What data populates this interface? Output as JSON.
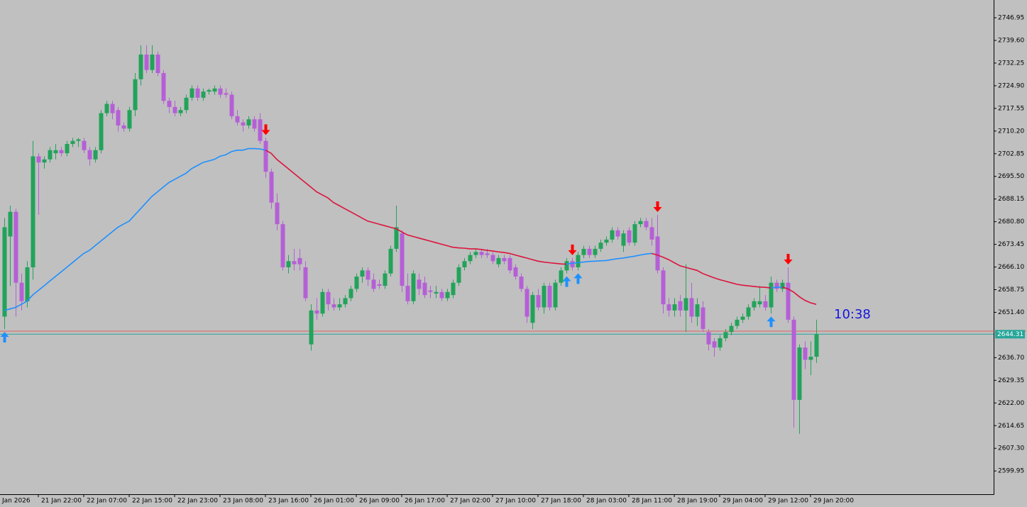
{
  "chart_data": {
    "type": "candlestick",
    "candles": [
      [
        2650,
        2682,
        2646,
        2679
      ],
      [
        2676,
        2686,
        2660,
        2684
      ],
      [
        2684,
        2685,
        2650,
        2661
      ],
      [
        2661,
        2664,
        2652,
        2655
      ],
      [
        2655,
        2668,
        2653,
        2666
      ],
      [
        2666,
        2707,
        2662,
        2702
      ],
      [
        2702,
        2703,
        2683,
        2700
      ],
      [
        2700,
        2702,
        2698,
        2701
      ],
      [
        2701,
        2705,
        2700,
        2704
      ],
      [
        2703,
        2706,
        2701,
        2704
      ],
      [
        2704,
        2705,
        2702,
        2703
      ],
      [
        2703,
        2707,
        2702,
        2706
      ],
      [
        2706,
        2708,
        2705,
        2707
      ],
      [
        2707,
        2708,
        2705,
        2707.5
      ],
      [
        2707,
        2708,
        2703,
        2704
      ],
      [
        2704,
        2705,
        2699,
        2701
      ],
      [
        2701,
        2705,
        2700,
        2704
      ],
      [
        2704,
        2717,
        2703,
        2716
      ],
      [
        2716,
        2720,
        2715,
        2719
      ],
      [
        2719,
        2720,
        2714,
        2716
      ],
      [
        2717,
        2718,
        2710,
        2712
      ],
      [
        2712,
        2713,
        2710,
        2711
      ],
      [
        2711,
        2718,
        2710,
        2717
      ],
      [
        2717,
        2729,
        2715,
        2727
      ],
      [
        2727,
        2738,
        2725,
        2735
      ],
      [
        2735,
        2738,
        2729,
        2730
      ],
      [
        2730,
        2738,
        2729,
        2735
      ],
      [
        2735,
        2736,
        2728,
        2729
      ],
      [
        2729,
        2730,
        2719,
        2720
      ],
      [
        2720,
        2721,
        2716,
        2718
      ],
      [
        2718,
        2720,
        2715,
        2716
      ],
      [
        2716,
        2718,
        2715,
        2717
      ],
      [
        2717,
        2722,
        2716,
        2721
      ],
      [
        2721,
        2725,
        2720,
        2724
      ],
      [
        2724,
        2725,
        2720,
        2721
      ],
      [
        2721,
        2724,
        2720,
        2723
      ],
      [
        2723,
        2724,
        2722,
        2723.5
      ],
      [
        2723,
        2725,
        2722,
        2724
      ],
      [
        2724,
        2725,
        2721,
        2722
      ],
      [
        2722.5,
        2724,
        2721,
        2722
      ],
      [
        2722,
        2723,
        2714,
        2715
      ],
      [
        2715,
        2717,
        2712,
        2713
      ],
      [
        2713,
        2714,
        2710,
        2712
      ],
      [
        2712,
        2715,
        2711,
        2714
      ],
      [
        2714,
        2715,
        2710,
        2711
      ],
      [
        2714,
        2716,
        2706,
        2707
      ],
      [
        2707,
        2708,
        2695,
        2697
      ],
      [
        2697,
        2698,
        2685,
        2687
      ],
      [
        2687,
        2690,
        2678,
        2680
      ],
      [
        2680,
        2681,
        2665,
        2666
      ],
      [
        2666,
        2670,
        2664,
        2668
      ],
      [
        2668,
        2672,
        2665,
        2667
      ],
      [
        2669,
        2672,
        2665,
        2667
      ],
      [
        2666,
        2668,
        2655,
        2656
      ],
      [
        2641,
        2654,
        2639,
        2652
      ],
      [
        2652,
        2656,
        2649,
        2651
      ],
      [
        2651,
        2659,
        2650,
        2658
      ],
      [
        2658,
        2659,
        2652,
        2654
      ],
      [
        2654,
        2656,
        2652,
        2653
      ],
      [
        2653,
        2656,
        2652,
        2654
      ],
      [
        2654,
        2657,
        2653,
        2656
      ],
      [
        2656,
        2660,
        2655,
        2659
      ],
      [
        2659,
        2664,
        2658,
        2663
      ],
      [
        2663,
        2666,
        2661,
        2665
      ],
      [
        2665,
        2666,
        2660,
        2662
      ],
      [
        2662,
        2664,
        2658,
        2659
      ],
      [
        2660.5,
        2662,
        2659,
        2660
      ],
      [
        2660,
        2665,
        2659,
        2664
      ],
      [
        2664,
        2673,
        2663,
        2672
      ],
      [
        2672,
        2686,
        2671,
        2679
      ],
      [
        2677,
        2678,
        2658,
        2660
      ],
      [
        2660,
        2664,
        2654,
        2655
      ],
      [
        2655,
        2665,
        2654,
        2664
      ],
      [
        2662,
        2664,
        2657,
        2659
      ],
      [
        2661,
        2663,
        2656,
        2657
      ],
      [
        2658.5,
        2660,
        2656,
        2658
      ],
      [
        2657.5,
        2660,
        2656,
        2658
      ],
      [
        2658,
        2659,
        2655,
        2656
      ],
      [
        2656,
        2659,
        2655,
        2658
      ],
      [
        2657,
        2662,
        2656,
        2661
      ],
      [
        2661,
        2667,
        2660,
        2666
      ],
      [
        2666,
        2669,
        2665,
        2668
      ],
      [
        2668,
        2671,
        2667,
        2670
      ],
      [
        2670,
        2672,
        2669,
        2671
      ],
      [
        2671,
        2672,
        2669,
        2670
      ],
      [
        2670.5,
        2672,
        2669,
        2670
      ],
      [
        2670,
        2671,
        2667,
        2668
      ],
      [
        2667,
        2670,
        2666,
        2669
      ],
      [
        2669,
        2670,
        2667,
        2668
      ],
      [
        2669,
        2670,
        2664,
        2665
      ],
      [
        2666,
        2667,
        2662,
        2663
      ],
      [
        2663,
        2664,
        2658,
        2659
      ],
      [
        2659,
        2660,
        2648,
        2650
      ],
      [
        2648,
        2658,
        2646,
        2657
      ],
      [
        2657,
        2659,
        2652,
        2653
      ],
      [
        2653,
        2661,
        2651,
        2660
      ],
      [
        2660,
        2661,
        2652,
        2653
      ],
      [
        2653,
        2662,
        2652,
        2661
      ],
      [
        2661,
        2666,
        2660,
        2665
      ],
      [
        2665,
        2669,
        2664,
        2668
      ],
      [
        2668,
        2669,
        2665,
        2666
      ],
      [
        2666,
        2671,
        2665,
        2670
      ],
      [
        2670,
        2673,
        2669,
        2672
      ],
      [
        2672,
        2673,
        2669,
        2670
      ],
      [
        2670,
        2673,
        2669,
        2672
      ],
      [
        2672,
        2675,
        2671,
        2674
      ],
      [
        2674,
        2676,
        2673,
        2675
      ],
      [
        2675,
        2679,
        2674,
        2678
      ],
      [
        2678,
        2679,
        2675,
        2676
      ],
      [
        2673,
        2678,
        2671,
        2677
      ],
      [
        2678,
        2679,
        2673,
        2674
      ],
      [
        2674,
        2681,
        2673,
        2680
      ],
      [
        2680,
        2682,
        2679,
        2681
      ],
      [
        2681,
        2682,
        2678,
        2679
      ],
      [
        2679,
        2682,
        2673,
        2675
      ],
      [
        2676,
        2683,
        2664,
        2665
      ],
      [
        2665,
        2666,
        2651,
        2654
      ],
      [
        2654,
        2656,
        2650,
        2652
      ],
      [
        2652,
        2656,
        2650,
        2654
      ],
      [
        2655,
        2657,
        2650,
        2652
      ],
      [
        2652,
        2667,
        2645,
        2656
      ],
      [
        2656,
        2661,
        2648,
        2650
      ],
      [
        2650,
        2656,
        2647,
        2654
      ],
      [
        2653,
        2655,
        2645,
        2646
      ],
      [
        2645,
        2646,
        2639,
        2641
      ],
      [
        2642,
        2643,
        2637,
        2640
      ],
      [
        2640,
        2644,
        2639,
        2643
      ],
      [
        2643,
        2646,
        2642,
        2645
      ],
      [
        2645,
        2648,
        2644,
        2647
      ],
      [
        2647,
        2650,
        2646,
        2649
      ],
      [
        2649,
        2651,
        2648,
        2650
      ],
      [
        2650,
        2654,
        2649,
        2653
      ],
      [
        2653,
        2656,
        2652,
        2655
      ],
      [
        2654,
        2660,
        2653,
        2655
      ],
      [
        2655,
        2657,
        2652,
        2653
      ],
      [
        2653,
        2663,
        2651,
        2661
      ],
      [
        2661,
        2662,
        2658,
        2659
      ],
      [
        2659,
        2662,
        2658,
        2661
      ],
      [
        2661,
        2666,
        2648,
        2649
      ],
      [
        2649,
        2650,
        2614,
        2623
      ],
      [
        2623,
        2641,
        2612,
        2640
      ],
      [
        2640,
        2642,
        2633,
        2636
      ],
      [
        2636,
        2642,
        2631,
        2637
      ],
      [
        2637,
        2649,
        2635,
        2644.31
      ]
    ],
    "up_color": "#22a35a",
    "down_color": "#b55fd6",
    "series": [
      {
        "color": "#1e90ff",
        "values": [
          2652,
          2652.5,
          2653,
          2654,
          2655,
          2657,
          2658.5,
          2660,
          2661.5,
          2663,
          2664.5,
          2666,
          2667.5,
          2669,
          2670.5,
          2671.5,
          2673,
          2674.5,
          2676,
          2677.5,
          2679,
          2680,
          2681,
          2683,
          2685,
          2687,
          2689,
          2690.5,
          2692,
          2693.5,
          2694.5,
          2695.5,
          2696.5,
          2698,
          2699,
          2700,
          2700.5,
          2701,
          2702,
          2702.5,
          2703.5,
          2704,
          2704,
          2704.5,
          2704.5,
          2704.4,
          2704,
          null,
          null,
          null,
          null,
          null,
          null,
          null,
          null,
          null,
          null,
          null,
          null,
          null,
          null,
          null,
          null,
          null,
          null,
          null,
          null,
          null,
          null,
          null,
          null,
          null,
          null,
          null,
          null,
          null,
          null,
          null,
          null,
          null,
          null,
          null,
          null,
          null,
          null,
          null,
          null,
          null,
          null,
          null,
          null,
          null,
          null,
          null,
          null,
          null,
          null,
          null,
          null,
          2667,
          2667.3,
          2667.5,
          2667.7,
          2667.9,
          2668,
          2668.1,
          2668.2,
          2668.5,
          2668.8,
          2669,
          2669.3,
          2669.6,
          2670,
          2670.3,
          2670.5,
          null,
          null,
          null,
          null,
          null,
          null,
          null,
          null,
          null,
          null,
          null,
          null,
          null,
          null,
          null,
          null,
          null,
          null,
          null,
          null,
          2659.3,
          2659.5,
          2659.6,
          null,
          null,
          null,
          null,
          null,
          null
        ]
      },
      {
        "color": "#dc143c",
        "values": [
          null,
          null,
          null,
          null,
          null,
          null,
          null,
          null,
          null,
          null,
          null,
          null,
          null,
          null,
          null,
          null,
          null,
          null,
          null,
          null,
          null,
          null,
          null,
          null,
          null,
          null,
          null,
          null,
          null,
          null,
          null,
          null,
          null,
          null,
          null,
          null,
          null,
          null,
          null,
          null,
          null,
          null,
          null,
          null,
          null,
          null,
          2704,
          2703,
          2701,
          2699.5,
          2698,
          2696.5,
          2695,
          2693.5,
          2692,
          2690.5,
          2689.5,
          2688.5,
          2687,
          2686,
          2685,
          2684,
          2683,
          2682,
          2681,
          2680.5,
          2680,
          2679.5,
          2679,
          2678.5,
          2677.5,
          2676.5,
          2676,
          2675.5,
          2675,
          2674.5,
          2674,
          2673.5,
          2673,
          2672.5,
          2672.3,
          2672.2,
          2672,
          2672,
          2671.8,
          2671.5,
          2671.3,
          2671,
          2670.8,
          2670.5,
          2670,
          2669.5,
          2669,
          2668.5,
          2668,
          2667.7,
          2667.5,
          2667.3,
          2667.1,
          2667,
          null,
          null,
          null,
          null,
          null,
          null,
          null,
          null,
          null,
          null,
          null,
          null,
          null,
          null,
          2670.5,
          2670,
          2669.3,
          2668.5,
          2667.5,
          2666.5,
          2666,
          2665.5,
          2665,
          2664,
          2663.3,
          2662.6,
          2662,
          2661.5,
          2661,
          2660.5,
          2660.2,
          2660,
          2659.8,
          2659.6,
          2659.5,
          2659.3,
          null,
          2659.6,
          2659,
          2658,
          2656.5,
          2655.3,
          2654.5,
          2654
        ]
      }
    ],
    "up_arrows": [
      0,
      99,
      101,
      135
    ],
    "down_arrows": [
      46,
      100,
      115,
      138
    ],
    "up_arrow_color": "#1e90ff",
    "down_arrow_color": "#ff0000",
    "ask": 2645.3,
    "ask_color": "#e06060",
    "bid": 2644.31,
    "bid_color": "#26a69a",
    "timer": "10:38",
    "xlim": [
      -0.75,
      174.25
    ],
    "ylim": [
      2592.4,
      2752.7
    ],
    "xticks": [
      {
        "value": -2,
        "label": "Jan 2026"
      },
      {
        "value": 6,
        "label": "21 Jan 22:00"
      },
      {
        "value": 14,
        "label": "22 Jan 07:00"
      },
      {
        "value": 22,
        "label": "22 Jan 15:00"
      },
      {
        "value": 30,
        "label": "22 Jan 23:00"
      },
      {
        "value": 38,
        "label": "23 Jan 08:00"
      },
      {
        "value": 46,
        "label": "23 Jan 16:00"
      },
      {
        "value": 54,
        "label": "26 Jan 01:00"
      },
      {
        "value": 62,
        "label": "26 Jan 09:00"
      },
      {
        "value": 70,
        "label": "26 Jan 17:00"
      },
      {
        "value": 78,
        "label": "27 Jan 02:00"
      },
      {
        "value": 86,
        "label": "27 Jan 10:00"
      },
      {
        "value": 94,
        "label": "27 Jan 18:00"
      },
      {
        "value": 102,
        "label": "28 Jan 03:00"
      },
      {
        "value": 110,
        "label": "28 Jan 11:00"
      },
      {
        "value": 118,
        "label": "28 Jan 19:00"
      },
      {
        "value": 126,
        "label": "29 Jan 04:00"
      },
      {
        "value": 134,
        "label": "29 Jan 12:00"
      },
      {
        "value": 142,
        "label": "29 Jan 20:00"
      }
    ],
    "yticks": [
      2746.95,
      {
        "value": 2739.6,
        "label": "2739.60"
      },
      2732.25,
      {
        "value": 2724.9,
        "label": "2724.90"
      },
      2717.55,
      {
        "value": 2710.2,
        "label": "2710.20"
      },
      2702.85,
      {
        "value": 2695.5,
        "label": "2695.50"
      },
      2688.15,
      {
        "value": 2680.8,
        "label": "2680.80"
      },
      2673.45,
      {
        "value": 2666.1,
        "label": "2666.10"
      },
      2658.75,
      {
        "value": 2651.4,
        "label": "2651.40"
      },
      {
        "value": 2636.7,
        "label": "2636.70"
      },
      2629.35,
      {
        "value": 2622,
        "label": "2622.00"
      },
      2614.65,
      {
        "value": 2607.3,
        "label": "2607.30"
      },
      2599.95
    ]
  }
}
